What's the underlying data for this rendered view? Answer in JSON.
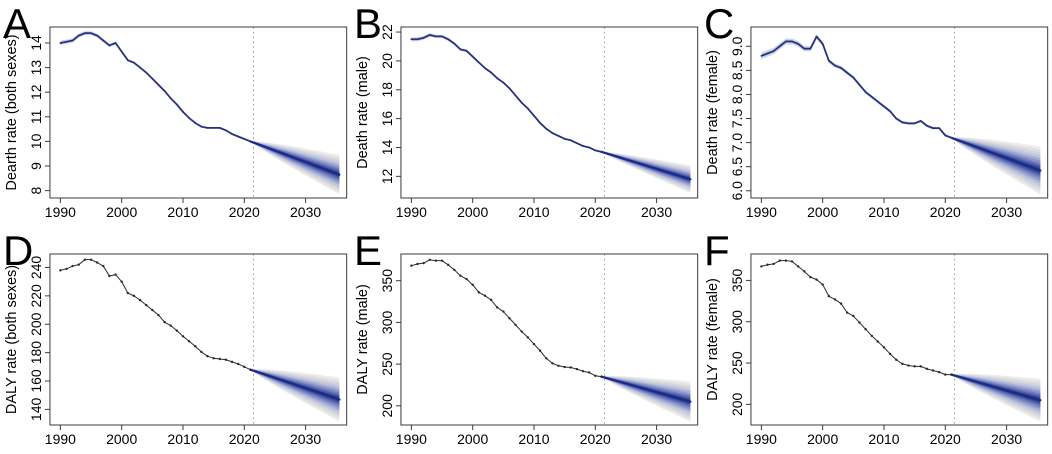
{
  "figure": {
    "description": "Six-panel fan-chart figure of observed and projected death and DALY rates, panels A-F",
    "background": "#ffffff"
  },
  "chart_style": {
    "observed_blue": "#27337e",
    "observed_black": "#2a2a2a",
    "ribbon_color": "#c4cee9",
    "fan_core_color": "#1b2b87",
    "fan_core_width": 2.3,
    "fan_bands": [
      {
        "frac": 1.0,
        "color": "#ececec"
      },
      {
        "frac": 0.88,
        "color": "#e0e0e1"
      },
      {
        "frac": 0.76,
        "color": "#d2d4dc"
      },
      {
        "frac": 0.64,
        "color": "#bfc5de"
      },
      {
        "frac": 0.52,
        "color": "#a6aed6"
      },
      {
        "frac": 0.41,
        "color": "#8893c8"
      },
      {
        "frac": 0.3,
        "color": "#6a77b9"
      },
      {
        "frac": 0.2,
        "color": "#4a59a6"
      },
      {
        "frac": 0.11,
        "color": "#2f3f94"
      },
      {
        "frac": 0.05,
        "color": "#232f8c"
      }
    ],
    "vline_color": "#9e9e9e",
    "box_color": "#3c3c3c",
    "text_color": "#000000"
  },
  "chart_data": [
    {
      "type": "line",
      "letter": "A",
      "ylabel": "Dearth rate (both sexes)",
      "line_style": "blue-ribbon",
      "x_start_year": 1990,
      "xlim": [
        1988.3,
        2036.7
      ],
      "ylim": [
        7.7,
        14.65
      ],
      "xticks": [
        1990,
        2000,
        2010,
        2020,
        2030
      ],
      "xtick_labels": [
        "1990",
        "2000",
        "2010",
        "2020",
        "2030"
      ],
      "yticks": [
        8,
        9,
        10,
        11,
        12,
        13,
        14
      ],
      "ytick_labels": [
        "8",
        "9",
        "10",
        "11",
        "12",
        "13",
        "14"
      ],
      "observed": [
        14.0,
        14.05,
        14.1,
        14.3,
        14.4,
        14.4,
        14.3,
        14.1,
        13.9,
        14.0,
        13.65,
        13.3,
        13.2,
        13.0,
        12.8,
        12.55,
        12.3,
        12.05,
        11.75,
        11.5,
        11.2,
        10.95,
        10.75,
        10.6,
        10.55,
        10.55,
        10.55,
        10.45,
        10.3,
        10.2,
        10.1,
        10.0
      ],
      "ribbon_knots": [
        [
          1990,
          0.09
        ],
        [
          1995,
          0.08
        ],
        [
          1999,
          0.06
        ],
        [
          2003,
          0.04
        ],
        [
          2021,
          0.035
        ]
      ],
      "vline_year": 2021.5,
      "forecast": {
        "start_year": 2021,
        "end_year": 2035.5,
        "mean_end": 8.65,
        "outer_halfwidth_end": 0.8
      }
    },
    {
      "type": "line",
      "letter": "B",
      "ylabel": "Death rate (male)",
      "line_style": "blue-ribbon",
      "x_start_year": 1990,
      "xlim": [
        1988.3,
        2036.7
      ],
      "ylim": [
        10.5,
        22.35
      ],
      "xticks": [
        1990,
        2000,
        2010,
        2020,
        2030
      ],
      "xtick_labels": [
        "1990",
        "2000",
        "2010",
        "2020",
        "2030"
      ],
      "yticks": [
        12,
        14,
        16,
        18,
        20,
        22
      ],
      "ytick_labels": [
        "12",
        "14",
        "16",
        "18",
        "20",
        "22"
      ],
      "observed": [
        21.5,
        21.5,
        21.6,
        21.8,
        21.7,
        21.7,
        21.5,
        21.2,
        20.8,
        20.7,
        20.3,
        19.9,
        19.5,
        19.2,
        18.8,
        18.5,
        18.1,
        17.6,
        17.1,
        16.7,
        16.2,
        15.7,
        15.3,
        15.0,
        14.8,
        14.6,
        14.5,
        14.3,
        14.1,
        14.0,
        13.8,
        13.7
      ],
      "ribbon_knots": [
        [
          1990,
          0.14
        ],
        [
          1995,
          0.12
        ],
        [
          1999,
          0.09
        ],
        [
          2003,
          0.06
        ],
        [
          2021,
          0.05
        ]
      ],
      "vline_year": 2021.5,
      "forecast": {
        "start_year": 2021,
        "end_year": 2035.5,
        "mean_end": 11.8,
        "outer_halfwidth_end": 0.95
      }
    },
    {
      "type": "line",
      "letter": "C",
      "ylabel": "Death rate (female)",
      "line_style": "blue-ribbon",
      "x_start_year": 1990,
      "xlim": [
        1988.3,
        2036.7
      ],
      "ylim": [
        5.85,
        9.4
      ],
      "xticks": [
        1990,
        2000,
        2010,
        2020,
        2030
      ],
      "xtick_labels": [
        "1990",
        "2000",
        "2010",
        "2020",
        "2030"
      ],
      "yticks": [
        6.0,
        6.5,
        7.0,
        7.5,
        8.0,
        8.5,
        9.0
      ],
      "ytick_labels": [
        "6.0",
        "6.5",
        "7.0",
        "7.5",
        "8.0",
        "8.5",
        "9.0"
      ],
      "observed": [
        8.8,
        8.85,
        8.9,
        9.0,
        9.1,
        9.1,
        9.05,
        8.95,
        8.95,
        9.2,
        9.05,
        8.7,
        8.6,
        8.55,
        8.45,
        8.35,
        8.2,
        8.05,
        7.95,
        7.85,
        7.75,
        7.65,
        7.5,
        7.42,
        7.4,
        7.4,
        7.45,
        7.35,
        7.3,
        7.3,
        7.15,
        7.1
      ],
      "ribbon_knots": [
        [
          1990,
          0.07
        ],
        [
          1995,
          0.06
        ],
        [
          1999,
          0.05
        ],
        [
          2005,
          0.035
        ],
        [
          2021,
          0.025
        ]
      ],
      "vline_year": 2021.5,
      "forecast": {
        "start_year": 2021,
        "end_year": 2035.5,
        "mean_end": 6.42,
        "outer_halfwidth_end": 0.5
      }
    },
    {
      "type": "line",
      "letter": "D",
      "ylabel": "DALY rate (both sexes)",
      "line_style": "black-points",
      "x_start_year": 1990,
      "xlim": [
        1988.3,
        2036.7
      ],
      "ylim": [
        129,
        249.5
      ],
      "xticks": [
        1990,
        2000,
        2010,
        2020,
        2030
      ],
      "xtick_labels": [
        "1990",
        "2000",
        "2010",
        "2020",
        "2030"
      ],
      "yticks": [
        140,
        160,
        180,
        200,
        220,
        240
      ],
      "ytick_labels": [
        "140",
        "160",
        "180",
        "200",
        "220",
        "240"
      ],
      "observed": [
        238,
        239,
        241,
        242,
        245.5,
        245.5,
        243.5,
        241,
        234,
        235,
        230,
        222,
        220,
        217,
        213.5,
        210,
        206.5,
        201.5,
        199,
        195.5,
        191.5,
        188,
        184.5,
        180.5,
        177.5,
        176,
        175.5,
        175,
        173.5,
        172,
        170,
        168
      ],
      "ribbon_knots": [],
      "vline_year": 2021.5,
      "forecast": {
        "start_year": 2021,
        "end_year": 2035.5,
        "mean_end": 147,
        "outer_halfwidth_end": 15.5
      }
    },
    {
      "type": "line",
      "letter": "E",
      "ylabel": "DALY rate (male)",
      "line_style": "black-points",
      "x_start_year": 1990,
      "xlim": [
        1988.3,
        2036.7
      ],
      "ylim": [
        177,
        382
      ],
      "xticks": [
        1990,
        2000,
        2010,
        2020,
        2030
      ],
      "xtick_labels": [
        "1990",
        "2000",
        "2010",
        "2020",
        "2030"
      ],
      "yticks": [
        200,
        250,
        300,
        350
      ],
      "ytick_labels": [
        "200",
        "250",
        "300",
        "350"
      ],
      "observed": [
        368,
        370,
        371,
        375,
        374,
        374,
        369,
        363,
        356,
        352,
        345,
        336,
        332,
        327,
        318,
        313,
        305,
        297,
        289,
        282,
        274,
        266,
        257,
        251,
        248,
        246.5,
        246,
        244,
        241.5,
        240,
        236,
        235
      ],
      "ribbon_knots": [],
      "vline_year": 2021.5,
      "forecast": {
        "start_year": 2021,
        "end_year": 2035.5,
        "mean_end": 205,
        "outer_halfwidth_end": 24
      }
    },
    {
      "type": "line",
      "letter": "F",
      "ylabel": "DALY rate (female)",
      "line_style": "black-points",
      "x_start_year": 1990,
      "xlim": [
        1988.3,
        2036.7
      ],
      "ylim": [
        175,
        382
      ],
      "xticks": [
        1990,
        2000,
        2010,
        2020,
        2030
      ],
      "xtick_labels": [
        "1990",
        "2000",
        "2010",
        "2020",
        "2030"
      ],
      "yticks": [
        200,
        250,
        300,
        350
      ],
      "ytick_labels": [
        "200",
        "250",
        "300",
        "350"
      ],
      "observed": [
        367,
        369,
        370,
        374,
        374,
        373,
        367,
        361,
        354,
        351,
        345,
        331,
        327,
        322,
        311,
        307,
        299,
        291,
        283,
        276,
        269,
        261,
        254,
        249,
        247,
        246,
        246,
        243,
        241,
        239,
        236,
        236
      ],
      "ribbon_knots": [],
      "vline_year": 2021.5,
      "forecast": {
        "start_year": 2021,
        "end_year": 2035.5,
        "mean_end": 205,
        "outer_halfwidth_end": 26
      }
    }
  ]
}
